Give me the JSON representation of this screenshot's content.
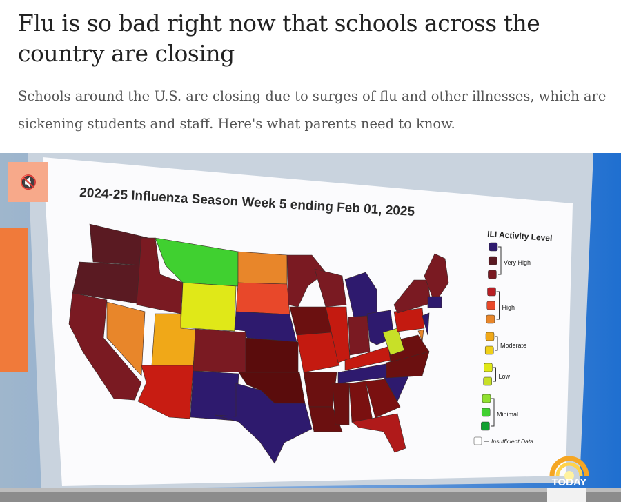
{
  "article": {
    "headline": "Flu is so bad right now that schools across the country are closing",
    "dek": "Schools around the U.S. are closing due to surges of flu and other illnesses, which are sickening students and staff. Here's what parents need to know."
  },
  "video": {
    "mute_icon": "speaker-muted-icon",
    "mute_glyph": "🔇",
    "network_logo": "TODAY",
    "progress_fraction": 0.94,
    "map": {
      "title": "2024-25 Influenza Season Week 5 ending Feb 01, 2025",
      "legend_title": "ILI Activity Level",
      "legend_groups": [
        {
          "label": "Very High",
          "colors": [
            "#2e1a6e",
            "#5a1a22",
            "#7a1a22"
          ]
        },
        {
          "label": "High",
          "colors": [
            "#b81e24",
            "#e8482a",
            "#e8862a"
          ]
        },
        {
          "label": "Moderate",
          "colors": [
            "#f0a818",
            "#f0d018"
          ]
        },
        {
          "label": "Low",
          "colors": [
            "#e0e818",
            "#c8e028"
          ]
        },
        {
          "label": "Minimal",
          "colors": [
            "#90e030",
            "#40d030",
            "#10a030"
          ]
        }
      ],
      "insufficient_label": "Insufficient Data"
    }
  }
}
